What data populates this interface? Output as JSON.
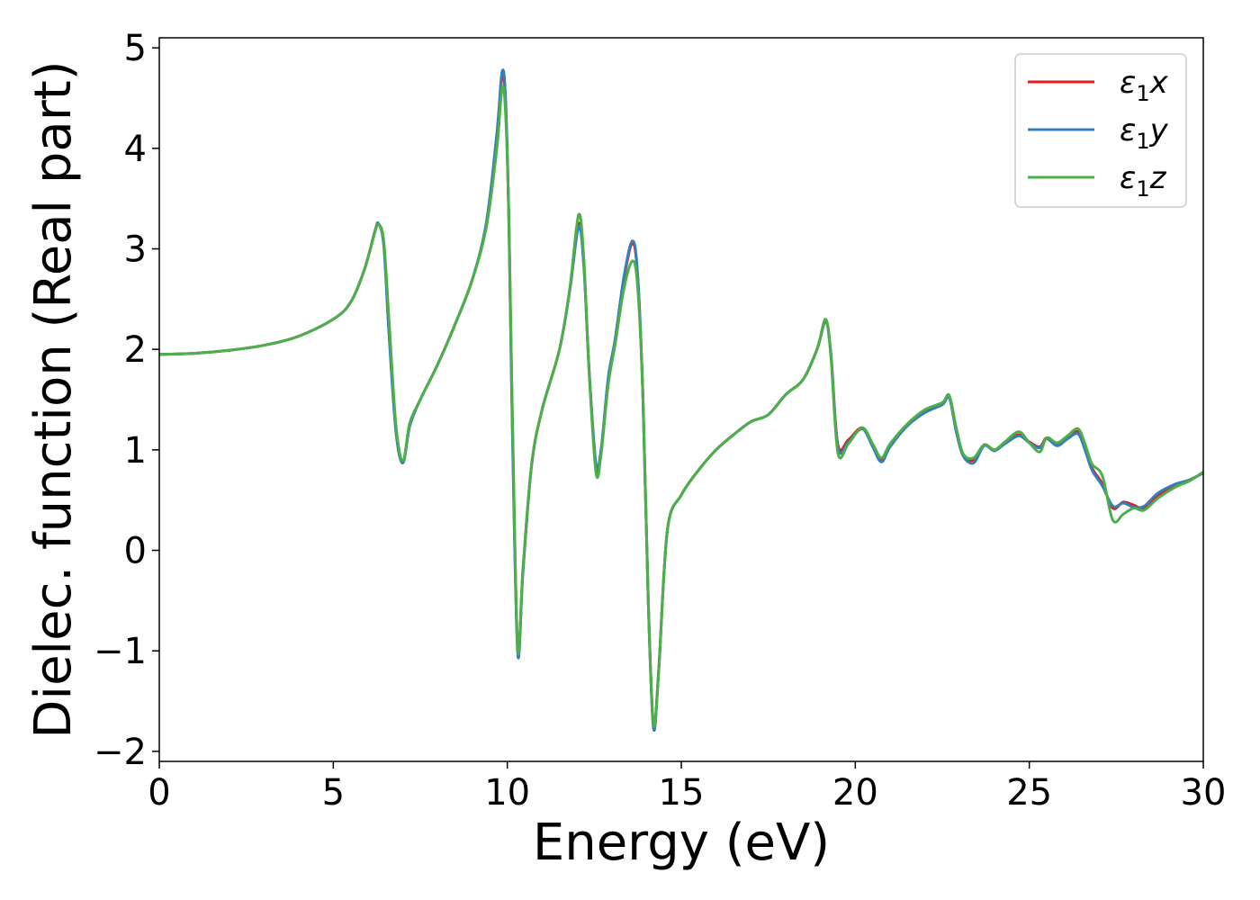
{
  "chart_data": {
    "type": "line",
    "title": "",
    "xlabel": "Energy (eV)",
    "ylabel": "Dielec. function (Real part)",
    "xlim": [
      0,
      30
    ],
    "ylim": [
      -2.1,
      5.1
    ],
    "xticks": [
      0,
      5,
      10,
      15,
      20,
      25,
      30
    ],
    "xtick_labels": [
      "0",
      "5",
      "10",
      "15",
      "20",
      "25",
      "30"
    ],
    "yticks": [
      -2,
      -1,
      0,
      1,
      2,
      3,
      4,
      5
    ],
    "ytick_labels": [
      "−2",
      "−1",
      "0",
      "1",
      "2",
      "3",
      "4",
      "5"
    ],
    "grid": false,
    "legend_position": "top-right",
    "series": [
      {
        "name": "ε1x",
        "legend_main": "ε",
        "legend_sub": "1",
        "legend_var": "x",
        "color": "#e41a1c",
        "points": [
          [
            0,
            1.95
          ],
          [
            1,
            1.96
          ],
          [
            2,
            1.99
          ],
          [
            3,
            2.04
          ],
          [
            4,
            2.13
          ],
          [
            5,
            2.3
          ],
          [
            5.5,
            2.47
          ],
          [
            5.9,
            2.8
          ],
          [
            6.2,
            3.18
          ],
          [
            6.3,
            3.25
          ],
          [
            6.45,
            3.05
          ],
          [
            6.6,
            2.2
          ],
          [
            6.8,
            1.2
          ],
          [
            7.0,
            0.88
          ],
          [
            7.2,
            1.25
          ],
          [
            7.5,
            1.5
          ],
          [
            8,
            1.85
          ],
          [
            8.5,
            2.25
          ],
          [
            9,
            2.7
          ],
          [
            9.4,
            3.25
          ],
          [
            9.7,
            4.1
          ],
          [
            9.85,
            4.72
          ],
          [
            9.95,
            4.45
          ],
          [
            10.05,
            3.2
          ],
          [
            10.15,
            1.2
          ],
          [
            10.3,
            -1.0
          ],
          [
            10.45,
            -0.2
          ],
          [
            10.7,
            0.85
          ],
          [
            11,
            1.4
          ],
          [
            11.5,
            2.0
          ],
          [
            11.8,
            2.6
          ],
          [
            12.05,
            3.25
          ],
          [
            12.2,
            2.85
          ],
          [
            12.35,
            1.8
          ],
          [
            12.55,
            0.82
          ],
          [
            12.7,
            1.0
          ],
          [
            12.9,
            1.7
          ],
          [
            13.1,
            2.1
          ],
          [
            13.35,
            2.7
          ],
          [
            13.6,
            3.05
          ],
          [
            13.75,
            2.7
          ],
          [
            13.9,
            1.5
          ],
          [
            14.05,
            -0.5
          ],
          [
            14.2,
            -1.75
          ],
          [
            14.35,
            -1.2
          ],
          [
            14.6,
            0.2
          ],
          [
            15,
            0.55
          ],
          [
            15.5,
            0.8
          ],
          [
            16,
            1.0
          ],
          [
            16.5,
            1.15
          ],
          [
            17,
            1.28
          ],
          [
            17.5,
            1.35
          ],
          [
            18,
            1.55
          ],
          [
            18.5,
            1.7
          ],
          [
            18.9,
            2.0
          ],
          [
            19.15,
            2.28
          ],
          [
            19.3,
            1.95
          ],
          [
            19.5,
            1.05
          ],
          [
            19.8,
            1.1
          ],
          [
            20.2,
            1.22
          ],
          [
            20.5,
            1.05
          ],
          [
            20.75,
            0.9
          ],
          [
            21.0,
            1.05
          ],
          [
            21.5,
            1.25
          ],
          [
            22,
            1.38
          ],
          [
            22.5,
            1.45
          ],
          [
            22.7,
            1.53
          ],
          [
            22.9,
            1.2
          ],
          [
            23.1,
            0.95
          ],
          [
            23.4,
            0.9
          ],
          [
            23.7,
            1.05
          ],
          [
            24,
            1.0
          ],
          [
            24.3,
            1.07
          ],
          [
            24.7,
            1.15
          ],
          [
            25,
            1.08
          ],
          [
            25.3,
            1.03
          ],
          [
            25.5,
            1.12
          ],
          [
            25.8,
            1.05
          ],
          [
            26.1,
            1.12
          ],
          [
            26.4,
            1.18
          ],
          [
            26.6,
            1.02
          ],
          [
            26.8,
            0.82
          ],
          [
            27.1,
            0.66
          ],
          [
            27.4,
            0.42
          ],
          [
            27.7,
            0.48
          ],
          [
            28.0,
            0.45
          ],
          [
            28.3,
            0.42
          ],
          [
            28.7,
            0.55
          ],
          [
            29.2,
            0.65
          ],
          [
            29.6,
            0.7
          ],
          [
            30,
            0.77
          ]
        ]
      },
      {
        "name": "ε1y",
        "legend_main": "ε",
        "legend_sub": "1",
        "legend_var": "y",
        "color": "#377eb8",
        "points": [
          [
            0,
            1.95
          ],
          [
            1,
            1.96
          ],
          [
            2,
            1.99
          ],
          [
            3,
            2.04
          ],
          [
            4,
            2.13
          ],
          [
            5,
            2.3
          ],
          [
            5.5,
            2.47
          ],
          [
            5.9,
            2.8
          ],
          [
            6.2,
            3.18
          ],
          [
            6.3,
            3.25
          ],
          [
            6.45,
            3.03
          ],
          [
            6.6,
            2.15
          ],
          [
            6.8,
            1.18
          ],
          [
            7.0,
            0.87
          ],
          [
            7.2,
            1.24
          ],
          [
            7.5,
            1.5
          ],
          [
            8,
            1.85
          ],
          [
            8.5,
            2.25
          ],
          [
            9,
            2.7
          ],
          [
            9.4,
            3.27
          ],
          [
            9.7,
            4.15
          ],
          [
            9.85,
            4.76
          ],
          [
            9.95,
            4.5
          ],
          [
            10.05,
            3.2
          ],
          [
            10.15,
            1.1
          ],
          [
            10.3,
            -1.03
          ],
          [
            10.45,
            -0.22
          ],
          [
            10.7,
            0.85
          ],
          [
            11,
            1.4
          ],
          [
            11.5,
            2.0
          ],
          [
            11.8,
            2.6
          ],
          [
            12.05,
            3.22
          ],
          [
            12.2,
            2.82
          ],
          [
            12.35,
            1.8
          ],
          [
            12.55,
            0.86
          ],
          [
            12.7,
            1.02
          ],
          [
            12.9,
            1.72
          ],
          [
            13.1,
            2.1
          ],
          [
            13.35,
            2.72
          ],
          [
            13.6,
            3.08
          ],
          [
            13.75,
            2.72
          ],
          [
            13.9,
            1.5
          ],
          [
            14.05,
            -0.5
          ],
          [
            14.2,
            -1.77
          ],
          [
            14.35,
            -1.2
          ],
          [
            14.6,
            0.2
          ],
          [
            15,
            0.55
          ],
          [
            15.5,
            0.8
          ],
          [
            16,
            1.0
          ],
          [
            16.5,
            1.15
          ],
          [
            17,
            1.28
          ],
          [
            17.5,
            1.35
          ],
          [
            18,
            1.55
          ],
          [
            18.5,
            1.7
          ],
          [
            18.9,
            2.0
          ],
          [
            19.15,
            2.28
          ],
          [
            19.3,
            1.95
          ],
          [
            19.5,
            1.02
          ],
          [
            19.8,
            1.08
          ],
          [
            20.2,
            1.21
          ],
          [
            20.5,
            1.03
          ],
          [
            20.75,
            0.88
          ],
          [
            21.0,
            1.03
          ],
          [
            21.5,
            1.24
          ],
          [
            22,
            1.37
          ],
          [
            22.5,
            1.45
          ],
          [
            22.7,
            1.52
          ],
          [
            22.9,
            1.18
          ],
          [
            23.1,
            0.94
          ],
          [
            23.4,
            0.87
          ],
          [
            23.7,
            1.04
          ],
          [
            24,
            0.99
          ],
          [
            24.3,
            1.06
          ],
          [
            24.7,
            1.14
          ],
          [
            25,
            1.07
          ],
          [
            25.3,
            1.02
          ],
          [
            25.5,
            1.11
          ],
          [
            25.8,
            1.04
          ],
          [
            26.1,
            1.11
          ],
          [
            26.4,
            1.16
          ],
          [
            26.6,
            1.0
          ],
          [
            26.8,
            0.8
          ],
          [
            27.1,
            0.64
          ],
          [
            27.4,
            0.44
          ],
          [
            27.7,
            0.47
          ],
          [
            28.0,
            0.43
          ],
          [
            28.3,
            0.44
          ],
          [
            28.7,
            0.57
          ],
          [
            29.2,
            0.66
          ],
          [
            29.6,
            0.7
          ],
          [
            30,
            0.77
          ]
        ]
      },
      {
        "name": "ε1z",
        "legend_main": "ε",
        "legend_sub": "1",
        "legend_var": "z",
        "color": "#4daf4a",
        "points": [
          [
            0,
            1.95
          ],
          [
            1,
            1.96
          ],
          [
            2,
            1.99
          ],
          [
            3,
            2.04
          ],
          [
            4,
            2.13
          ],
          [
            5,
            2.3
          ],
          [
            5.5,
            2.47
          ],
          [
            5.9,
            2.8
          ],
          [
            6.2,
            3.17
          ],
          [
            6.3,
            3.24
          ],
          [
            6.45,
            3.08
          ],
          [
            6.6,
            2.3
          ],
          [
            6.8,
            1.25
          ],
          [
            7.0,
            0.89
          ],
          [
            7.2,
            1.27
          ],
          [
            7.5,
            1.5
          ],
          [
            8,
            1.85
          ],
          [
            8.5,
            2.25
          ],
          [
            9,
            2.7
          ],
          [
            9.4,
            3.22
          ],
          [
            9.7,
            4.0
          ],
          [
            9.85,
            4.6
          ],
          [
            9.95,
            4.35
          ],
          [
            10.05,
            3.25
          ],
          [
            10.15,
            1.3
          ],
          [
            10.3,
            -0.98
          ],
          [
            10.45,
            -0.18
          ],
          [
            10.7,
            0.86
          ],
          [
            11,
            1.4
          ],
          [
            11.5,
            2.0
          ],
          [
            11.8,
            2.62
          ],
          [
            12.05,
            3.34
          ],
          [
            12.2,
            2.9
          ],
          [
            12.35,
            1.78
          ],
          [
            12.55,
            0.77
          ],
          [
            12.7,
            0.97
          ],
          [
            12.9,
            1.65
          ],
          [
            13.1,
            2.05
          ],
          [
            13.35,
            2.6
          ],
          [
            13.6,
            2.88
          ],
          [
            13.75,
            2.6
          ],
          [
            13.9,
            1.5
          ],
          [
            14.05,
            -0.5
          ],
          [
            14.2,
            -1.73
          ],
          [
            14.35,
            -1.2
          ],
          [
            14.6,
            0.2
          ],
          [
            15,
            0.55
          ],
          [
            15.5,
            0.8
          ],
          [
            16,
            1.0
          ],
          [
            16.5,
            1.15
          ],
          [
            17,
            1.28
          ],
          [
            17.5,
            1.35
          ],
          [
            18,
            1.55
          ],
          [
            18.5,
            1.7
          ],
          [
            18.9,
            2.0
          ],
          [
            19.15,
            2.3
          ],
          [
            19.3,
            1.92
          ],
          [
            19.5,
            0.97
          ],
          [
            19.8,
            1.06
          ],
          [
            20.2,
            1.22
          ],
          [
            20.5,
            1.06
          ],
          [
            20.75,
            0.92
          ],
          [
            21.0,
            1.06
          ],
          [
            21.5,
            1.26
          ],
          [
            22,
            1.4
          ],
          [
            22.5,
            1.47
          ],
          [
            22.7,
            1.54
          ],
          [
            22.9,
            1.22
          ],
          [
            23.1,
            0.96
          ],
          [
            23.4,
            0.92
          ],
          [
            23.7,
            1.05
          ],
          [
            24,
            1.0
          ],
          [
            24.3,
            1.08
          ],
          [
            24.7,
            1.18
          ],
          [
            25,
            1.07
          ],
          [
            25.3,
            0.98
          ],
          [
            25.5,
            1.12
          ],
          [
            25.8,
            1.07
          ],
          [
            26.1,
            1.14
          ],
          [
            26.4,
            1.21
          ],
          [
            26.6,
            1.06
          ],
          [
            26.8,
            0.86
          ],
          [
            27.1,
            0.74
          ],
          [
            27.4,
            0.3
          ],
          [
            27.7,
            0.36
          ],
          [
            28.0,
            0.42
          ],
          [
            28.3,
            0.4
          ],
          [
            28.7,
            0.52
          ],
          [
            29.2,
            0.63
          ],
          [
            29.6,
            0.69
          ],
          [
            30,
            0.78
          ]
        ]
      }
    ]
  }
}
